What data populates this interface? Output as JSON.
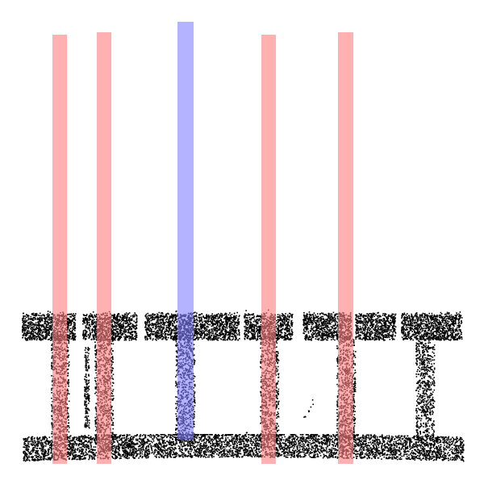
{
  "scene": {
    "description_visible_text": "",
    "colors": {
      "background": "#ffffff",
      "points": "#000000",
      "marker_red": "#ff8080",
      "marker_blue": "#8080ff"
    },
    "objects": {
      "top_rails": 7,
      "legs": 7,
      "bottom_bar": 1
    },
    "highlight_markers": [
      {
        "name": "red-marker-1",
        "color": "red"
      },
      {
        "name": "red-marker-2",
        "color": "red"
      },
      {
        "name": "blue-marker",
        "color": "blue"
      },
      {
        "name": "red-marker-3",
        "color": "red"
      },
      {
        "name": "red-marker-4",
        "color": "red"
      }
    ]
  }
}
